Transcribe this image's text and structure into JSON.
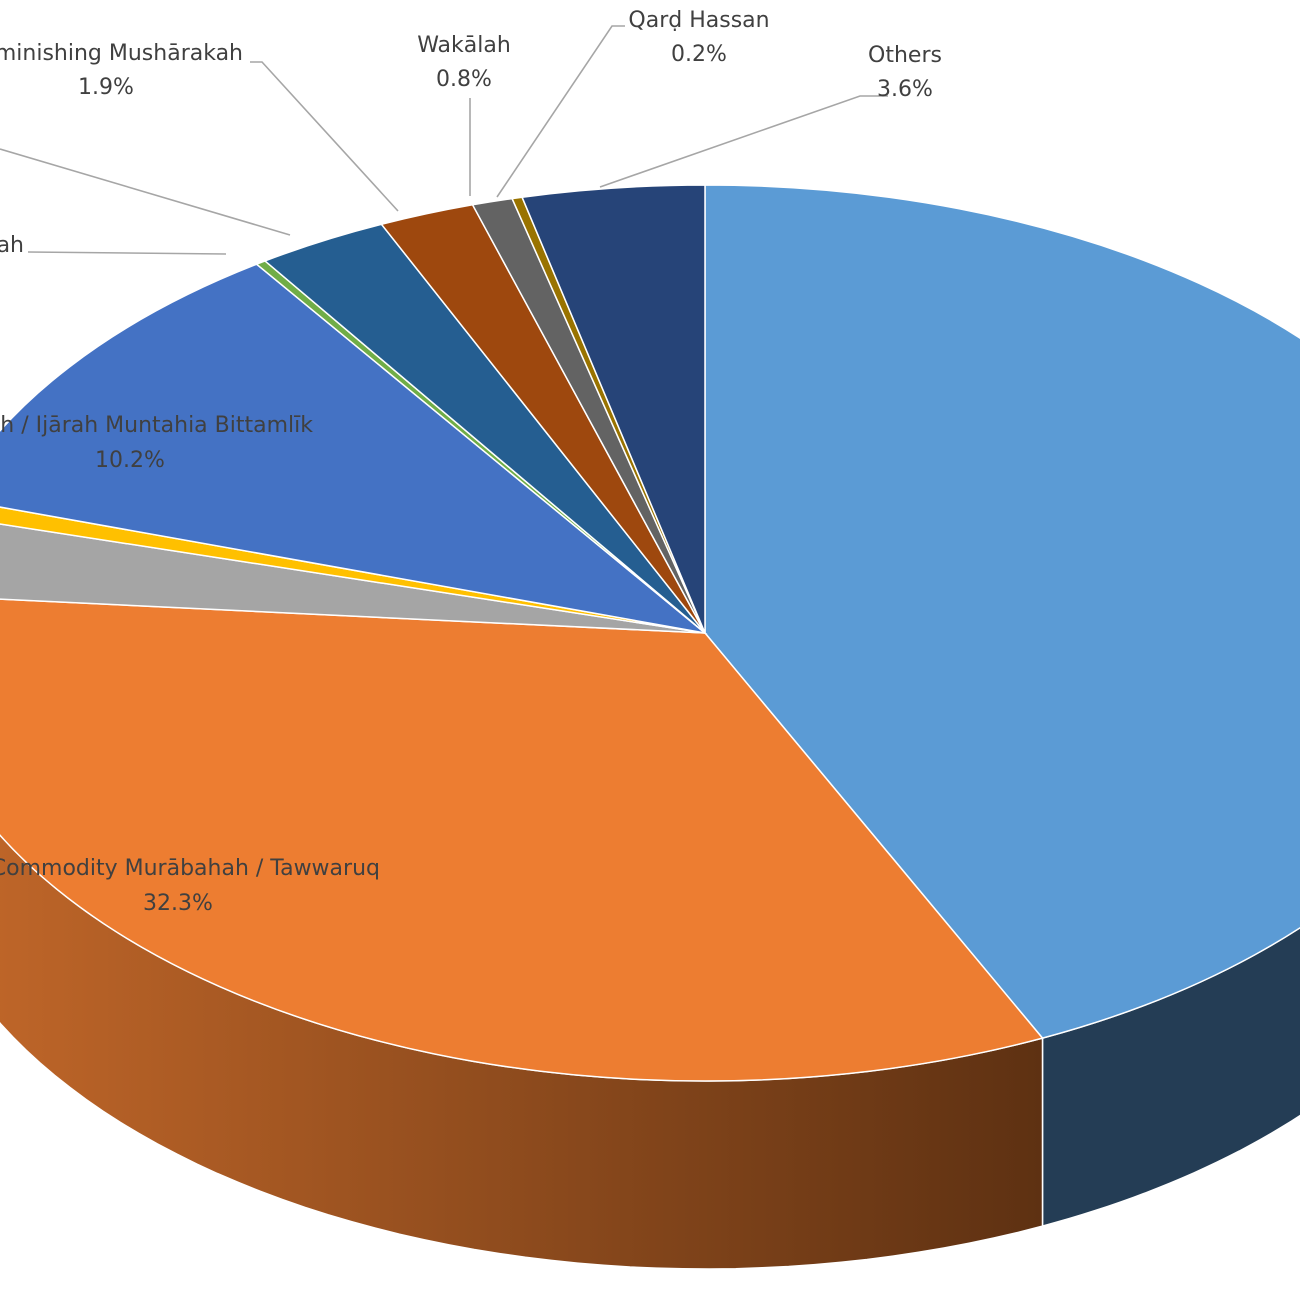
{
  "chart_data": {
    "type": "pie",
    "style": "3d",
    "slices": [
      {
        "label": "",
        "value": "",
        "pct": 41.6,
        "color": "#5b9bd5",
        "side": "#243d55"
      },
      {
        "label": "Commodity Murābahah / Tawwaruq",
        "value": "32.3%",
        "pct": 32.3,
        "color": "#ed7d31",
        "side": "#8f4a1d"
      },
      {
        "label": "",
        "value": "",
        "pct": 2.8,
        "color": "#a5a5a5",
        "side": "#6b6b6b"
      },
      {
        "label": "",
        "value": "",
        "pct": 0.6,
        "color": "#ffc000",
        "side": "#a07800"
      },
      {
        "label": "Ijārah / Ijārah Muntahia Bittamlīk",
        "value": "10.2%",
        "pct": 10.2,
        "color": "#4472c4",
        "side": "#2a4680"
      },
      {
        "label": "Musharakah",
        "value": "",
        "pct": 0.2,
        "color": "#70ad47",
        "side": "#466d2c"
      },
      {
        "label": "",
        "value": "",
        "pct": 2.6,
        "color": "#255e91",
        "side": "#173b5b"
      },
      {
        "label": "Diminishing Mushārakah",
        "value": "1.9%",
        "pct": 1.9,
        "color": "#9e480e",
        "side": "#632d09"
      },
      {
        "label": "Wakālah",
        "value": "0.8%",
        "pct": 0.8,
        "color": "#636363",
        "side": "#3e3e3e"
      },
      {
        "label": "Qarḍ Hassan",
        "value": "0.2%",
        "pct": 0.2,
        "color": "#997300",
        "side": "#604800"
      },
      {
        "label": "Others",
        "value": "3.6%",
        "pct": 3.6,
        "color": "#264478",
        "side": "#172a4a"
      }
    ]
  }
}
